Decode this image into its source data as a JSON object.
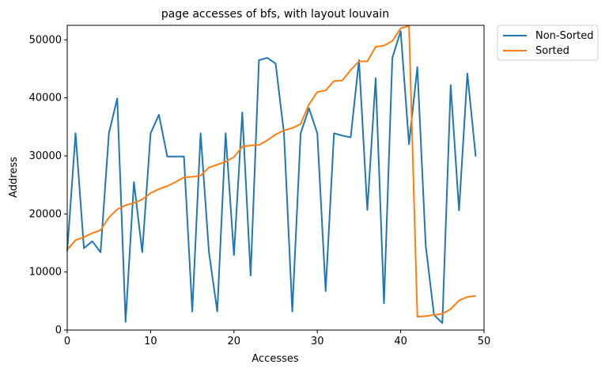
{
  "chart_data": {
    "type": "line",
    "title": "page accesses of bfs, with layout louvain",
    "xlabel": "Accesses",
    "ylabel": "Address",
    "xlim": [
      0,
      50
    ],
    "ylim": [
      0,
      52500
    ],
    "xticks": [
      0,
      10,
      20,
      30,
      40,
      50
    ],
    "yticks": [
      0,
      10000,
      20000,
      30000,
      40000,
      50000
    ],
    "grid": false,
    "legend_position": "outside-top-right",
    "x": [
      0,
      1,
      2,
      3,
      4,
      5,
      6,
      7,
      8,
      9,
      10,
      11,
      12,
      13,
      14,
      15,
      16,
      17,
      18,
      19,
      20,
      21,
      22,
      23,
      24,
      25,
      26,
      27,
      28,
      29,
      30,
      31,
      32,
      33,
      34,
      35,
      36,
      37,
      38,
      39,
      40,
      41,
      42,
      43,
      44,
      45,
      46,
      47,
      48,
      49
    ],
    "series": [
      {
        "name": "Non-Sorted",
        "color": "#1f77b4",
        "values": [
          13600,
          33900,
          14100,
          15300,
          13400,
          33900,
          39900,
          1400,
          25500,
          13400,
          33900,
          37100,
          29900,
          29900,
          29900,
          3200,
          33900,
          13400,
          3200,
          33900,
          12900,
          37500,
          9400,
          46500,
          46900,
          45900,
          33900,
          3200,
          33900,
          38200,
          33900,
          6700,
          33900,
          33500,
          33200,
          46500,
          20700,
          43400,
          4600,
          46900,
          51500,
          32000,
          45300,
          14600,
          2600,
          1200,
          42200,
          20600,
          44200,
          29900
        ]
      },
      {
        "name": "Sorted",
        "color": "#ff7f0e",
        "values": [
          13800,
          15500,
          16000,
          16700,
          17200,
          19400,
          20800,
          21500,
          21900,
          22500,
          23600,
          24300,
          24800,
          25500,
          26300,
          26400,
          26600,
          28000,
          28500,
          29000,
          29800,
          31600,
          31800,
          31900,
          32700,
          33700,
          34400,
          34800,
          35500,
          38900,
          41000,
          41300,
          42900,
          43000,
          44800,
          46300,
          46300,
          48800,
          49000,
          49800,
          52000,
          52400,
          2300,
          2400,
          2600,
          2800,
          3600,
          5100,
          5700,
          5900
        ]
      }
    ]
  }
}
